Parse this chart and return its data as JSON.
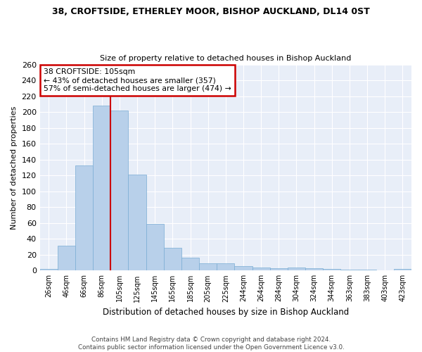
{
  "title1": "38, CROFTSIDE, ETHERLEY MOOR, BISHOP AUCKLAND, DL14 0ST",
  "title2": "Size of property relative to detached houses in Bishop Auckland",
  "xlabel": "Distribution of detached houses by size in Bishop Auckland",
  "ylabel": "Number of detached properties",
  "categories": [
    "26sqm",
    "46sqm",
    "66sqm",
    "86sqm",
    "105sqm",
    "125sqm",
    "145sqm",
    "165sqm",
    "185sqm",
    "205sqm",
    "225sqm",
    "244sqm",
    "264sqm",
    "284sqm",
    "304sqm",
    "324sqm",
    "344sqm",
    "363sqm",
    "383sqm",
    "403sqm",
    "423sqm"
  ],
  "values": [
    2,
    31,
    133,
    208,
    202,
    121,
    59,
    29,
    16,
    9,
    9,
    6,
    4,
    3,
    4,
    3,
    2,
    1,
    1,
    0,
    2
  ],
  "bar_color": "#b8d0ea",
  "bar_edge_color": "#7aadd4",
  "vline_color": "#cc0000",
  "annotation_title": "38 CROFTSIDE: 105sqm",
  "annotation_line1": "← 43% of detached houses are smaller (357)",
  "annotation_line2": "57% of semi-detached houses are larger (474) →",
  "annotation_box_color": "#cc0000",
  "footer1": "Contains HM Land Registry data © Crown copyright and database right 2024.",
  "footer2": "Contains public sector information licensed under the Open Government Licence v3.0.",
  "bg_color": "#e8eef8",
  "ylim": [
    0,
    260
  ],
  "yticks": [
    0,
    20,
    40,
    60,
    80,
    100,
    120,
    140,
    160,
    180,
    200,
    220,
    240,
    260
  ]
}
